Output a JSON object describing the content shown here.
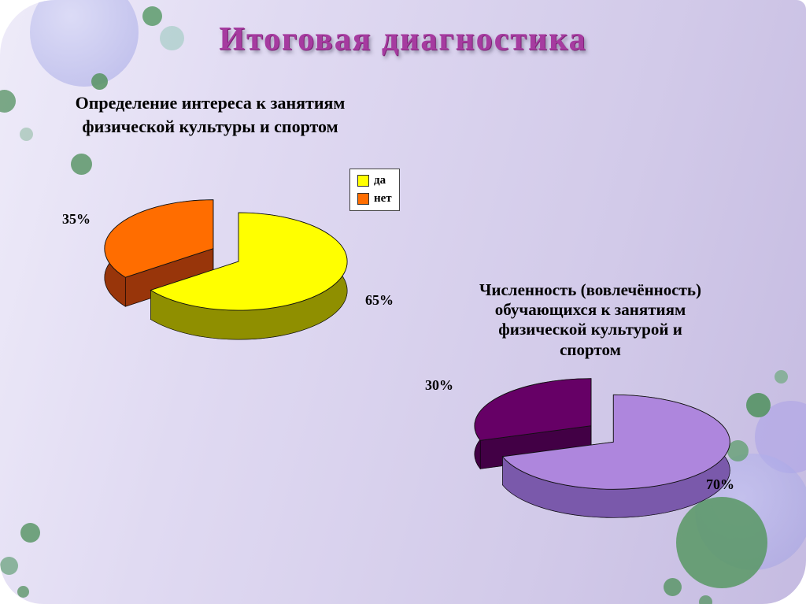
{
  "slide": {
    "title": "Итоговая диагностика"
  },
  "chart_data": [
    {
      "type": "pie",
      "title": "Определение интереса к занятиям физической культуры и спортом",
      "title_lines": [
        "Определение интереса к занятиям",
        "физической культуры и спортом"
      ],
      "labels": [
        "да",
        "нет"
      ],
      "values": [
        65,
        35
      ],
      "value_labels": [
        "65%",
        "35%"
      ],
      "colors": [
        "#ffff00",
        "#ff6d00"
      ],
      "side_colors": [
        "#8f8f00",
        "#98350a"
      ],
      "style": "3d-exploded-pie",
      "legend_position": "top-right"
    },
    {
      "type": "pie",
      "title": "Численность (вовлечённость) обучающихся к занятиям физической культурой и спортом",
      "title_lines": [
        "Численность (вовлечённость)",
        "обучающихся к занятиям",
        "физической культурой и",
        "спортом"
      ],
      "values": [
        70,
        30
      ],
      "value_labels": [
        "70%",
        "30%"
      ],
      "colors": [
        "#ae86dd",
        "#660066"
      ],
      "side_colors": [
        "#7a59ab",
        "#420045"
      ],
      "style": "3d-exploded-pie",
      "legend_position": "none"
    }
  ]
}
